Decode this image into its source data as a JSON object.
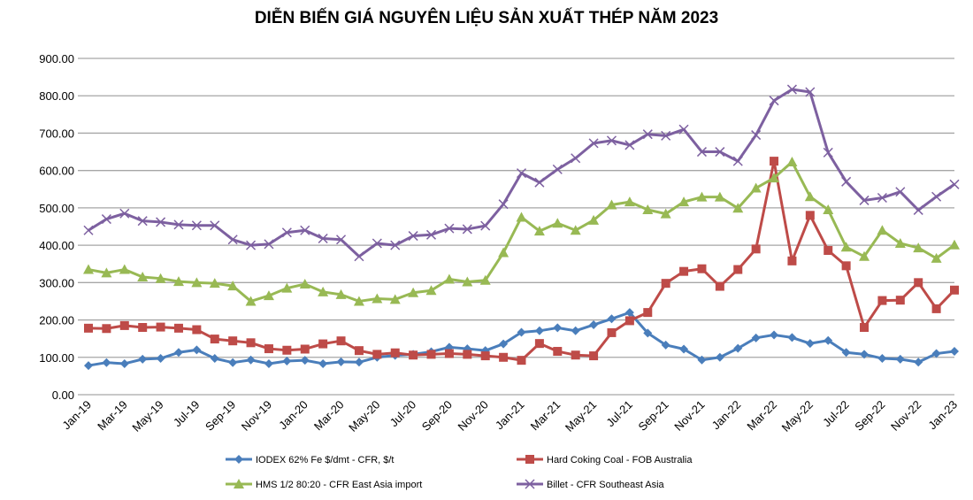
{
  "chart_data": {
    "type": "line",
    "title": "DIỄN BIẾN GIÁ NGUYÊN LIỆU SẢN XUẤT THÉP NĂM 2023",
    "xlabel": "",
    "ylabel": "",
    "ylim": [
      0,
      900
    ],
    "yticks": [
      "0.00",
      "100.00",
      "200.00",
      "300.00",
      "400.00",
      "500.00",
      "600.00",
      "700.00",
      "800.00",
      "900.00"
    ],
    "grid": true,
    "legend_position": "bottom",
    "x": [
      "Jan-19",
      "Feb-19",
      "Mar-19",
      "Apr-19",
      "May-19",
      "Jun-19",
      "Jul-19",
      "Aug-19",
      "Sep-19",
      "Oct-19",
      "Nov-19",
      "Dec-19",
      "Jan-20",
      "Feb-20",
      "Mar-20",
      "Apr-20",
      "May-20",
      "Jun-20",
      "Jul-20",
      "Aug-20",
      "Sep-20",
      "Oct-20",
      "Nov-20",
      "Dec-20",
      "Jan-21",
      "Feb-21",
      "Mar-21",
      "Apr-21",
      "May-21",
      "Jun-21",
      "Jul-21",
      "Aug-21",
      "Sep-21",
      "Oct-21",
      "Nov-21",
      "Dec-21",
      "Jan-22",
      "Feb-22",
      "Mar-22",
      "Apr-22",
      "May-22",
      "Jun-22",
      "Jul-22",
      "Aug-22",
      "Sep-22",
      "Oct-22",
      "Nov-22",
      "Dec-22",
      "Jan-23"
    ],
    "series": [
      {
        "name": "IODEX 62% Fe $/dmt - CFR, $/t",
        "color": "#4a7ebb",
        "marker": "diamond",
        "values": [
          78,
          86,
          83,
          95,
          97,
          113,
          120,
          97,
          86,
          93,
          83,
          90,
          92,
          83,
          88,
          87,
          100,
          105,
          108,
          115,
          127,
          123,
          118,
          136,
          167,
          171,
          179,
          171,
          187,
          203,
          220,
          165,
          133,
          122,
          93,
          100,
          124,
          152,
          160,
          153,
          137,
          145,
          113,
          108,
          97,
          95,
          87,
          110,
          116
        ]
      },
      {
        "name": "Hard Coking Coal - FOB Australia",
        "color": "#be4b48",
        "marker": "square",
        "values": [
          178,
          177,
          185,
          180,
          181,
          178,
          174,
          149,
          144,
          139,
          123,
          119,
          122,
          136,
          144,
          118,
          108,
          112,
          106,
          108,
          110,
          108,
          104,
          100,
          92,
          137,
          116,
          106,
          104,
          166,
          198,
          220,
          298,
          330,
          337,
          290,
          335,
          390,
          625,
          358,
          480,
          386,
          345,
          180,
          252,
          253,
          300,
          230,
          280
        ]
      },
      {
        "name": "HMS 1/2 80:20 - CFR East Asia import",
        "color": "#98b954",
        "marker": "triangle",
        "values": [
          335,
          326,
          335,
          315,
          311,
          303,
          300,
          298,
          291,
          250,
          265,
          285,
          296,
          275,
          268,
          250,
          257,
          255,
          273,
          279,
          309,
          302,
          306,
          380,
          475,
          438,
          459,
          440,
          467,
          508,
          516,
          495,
          484,
          516,
          529,
          529,
          499,
          553,
          580,
          623,
          530,
          495,
          395,
          370,
          440,
          405,
          393,
          365,
          401
        ]
      },
      {
        "name": "Billet - CFR Southeast Asia",
        "color": "#7d60a0",
        "marker": "x",
        "values": [
          440,
          470,
          485,
          465,
          462,
          455,
          453,
          453,
          415,
          400,
          403,
          434,
          440,
          418,
          415,
          370,
          405,
          400,
          425,
          428,
          445,
          443,
          452,
          510,
          593,
          568,
          603,
          633,
          673,
          680,
          668,
          697,
          693,
          710,
          650,
          650,
          625,
          695,
          787,
          817,
          810,
          648,
          570,
          520,
          527,
          543,
          494,
          530,
          563
        ]
      }
    ]
  }
}
